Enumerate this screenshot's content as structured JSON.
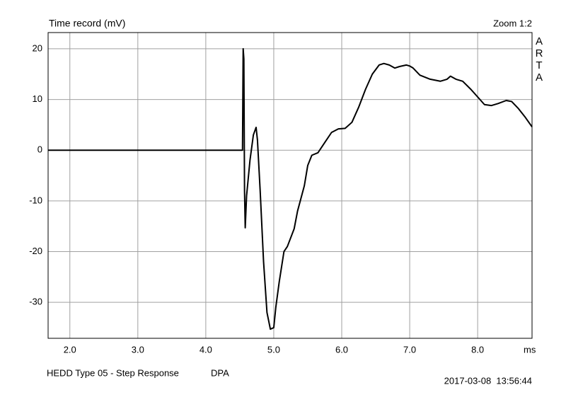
{
  "chart_data": {
    "type": "line",
    "title": "Time record (mV)",
    "zoom_label": "Zoom 1:2",
    "watermark": "ARTA",
    "x_unit": "ms",
    "footer": "HEDD Type 05 - Step Response",
    "footer_note": "DPA",
    "timestamp": "2017-03-08  13:56:44",
    "color": "#000000",
    "grid": true,
    "xlim": [
      1.68,
      8.8
    ],
    "ylim": [
      -37.1,
      23.2
    ],
    "xticks": [
      {
        "value": 2,
        "label": "2.0"
      },
      {
        "value": 3,
        "label": "3.0"
      },
      {
        "value": 4,
        "label": "4.0"
      },
      {
        "value": 5,
        "label": "5.0"
      },
      {
        "value": 6,
        "label": "6.0"
      },
      {
        "value": 7,
        "label": "7.0"
      },
      {
        "value": 8,
        "label": "8.0"
      }
    ],
    "yticks": [
      20,
      10,
      0,
      -10,
      -20,
      -30
    ],
    "x": [
      1.68,
      4.54,
      4.55,
      4.56,
      4.57,
      4.58,
      4.6,
      4.65,
      4.7,
      4.74,
      4.76,
      4.8,
      4.85,
      4.9,
      4.95,
      5.0,
      5.03,
      5.08,
      5.15,
      5.2,
      5.3,
      5.35,
      5.45,
      5.5,
      5.56,
      5.65,
      5.75,
      5.85,
      5.95,
      6.05,
      6.15,
      6.25,
      6.35,
      6.45,
      6.55,
      6.62,
      6.7,
      6.78,
      6.85,
      6.95,
      7.0,
      7.05,
      7.15,
      7.3,
      7.45,
      7.55,
      7.6,
      7.68,
      7.78,
      7.9,
      8.0,
      8.1,
      8.2,
      8.3,
      8.42,
      8.5,
      8.6,
      8.7,
      8.8
    ],
    "values": [
      0,
      0,
      20,
      18,
      -8,
      -15.3,
      -9,
      -2,
      3,
      4.5,
      2,
      -8,
      -22,
      -32,
      -35.3,
      -35,
      -31,
      -26,
      -20,
      -19,
      -15.5,
      -12,
      -7,
      -3,
      -1,
      -0.5,
      1.5,
      3.5,
      4.2,
      4.3,
      5.5,
      8.5,
      12,
      15,
      16.8,
      17.1,
      16.8,
      16.2,
      16.5,
      16.8,
      16.6,
      16.2,
      14.8,
      14,
      13.6,
      14,
      14.6,
      14,
      13.6,
      12,
      10.5,
      9,
      8.8,
      9.2,
      9.8,
      9.6,
      8.2,
      6.5,
      4.6
    ]
  }
}
